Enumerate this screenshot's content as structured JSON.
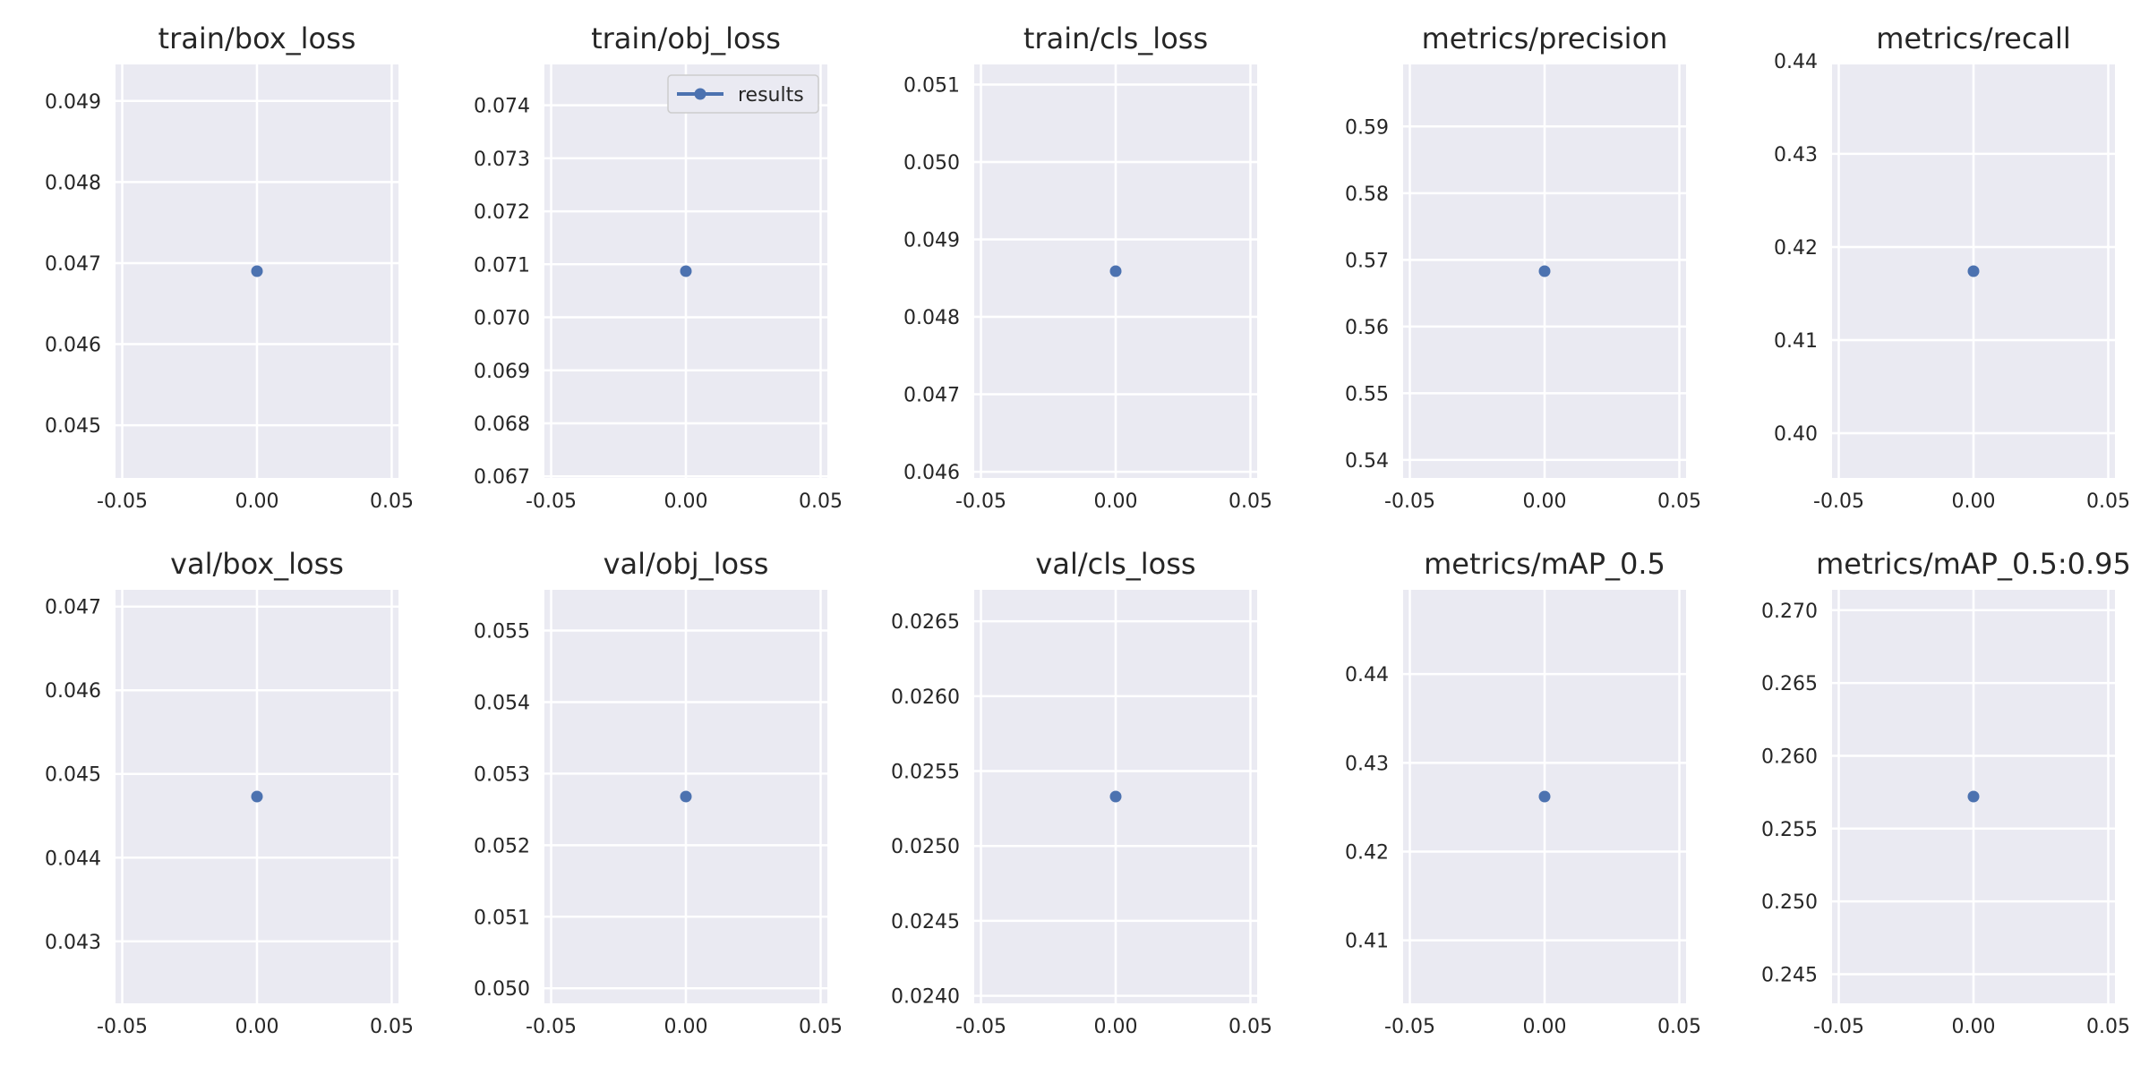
{
  "chart_data": {
    "type": "scatter",
    "legend": {
      "label": "results",
      "position": "upper-right",
      "panel": 1
    },
    "colors": {
      "point": "#4c72b0",
      "background": "#eaeaf2",
      "grid": "#ffffff",
      "text": "#262626"
    },
    "grid": true,
    "x_ticks": [
      "-0.05",
      "0.00",
      "0.05"
    ],
    "panels": [
      {
        "title": "train/box_loss",
        "x": 0.0,
        "y": 0.0469,
        "ylim": [
          0.04435,
          0.04945
        ],
        "yticks": [
          0.045,
          0.046,
          0.047,
          0.048,
          0.049
        ],
        "ytick_labels": [
          "0.045",
          "0.046",
          "0.047",
          "0.048",
          "0.049"
        ]
      },
      {
        "title": "train/obj_loss",
        "x": 0.0,
        "y": 0.07087,
        "ylim": [
          0.06697,
          0.07477
        ],
        "yticks": [
          0.067,
          0.068,
          0.069,
          0.07,
          0.071,
          0.072,
          0.073,
          0.074
        ],
        "ytick_labels": [
          "0.067",
          "0.068",
          "0.069",
          "0.070",
          "0.071",
          "0.072",
          "0.073",
          "0.074"
        ]
      },
      {
        "title": "train/cls_loss",
        "x": 0.0,
        "y": 0.04859,
        "ylim": [
          0.04592,
          0.05126
        ],
        "yticks": [
          0.046,
          0.047,
          0.048,
          0.049,
          0.05,
          0.051
        ],
        "ytick_labels": [
          "0.046",
          "0.047",
          "0.048",
          "0.049",
          "0.050",
          "0.051"
        ]
      },
      {
        "title": "metrics/precision",
        "x": 0.0,
        "y": 0.5683,
        "ylim": [
          0.5373,
          0.5993
        ],
        "yticks": [
          0.54,
          0.55,
          0.56,
          0.57,
          0.58,
          0.59
        ],
        "ytick_labels": [
          "0.54",
          "0.55",
          "0.56",
          "0.57",
          "0.58",
          "0.59"
        ]
      },
      {
        "title": "metrics/recall",
        "x": 0.0,
        "y": 0.4174,
        "ylim": [
          0.3952,
          0.4396
        ],
        "yticks": [
          0.4,
          0.41,
          0.42,
          0.43,
          0.44
        ],
        "ytick_labels": [
          "0.40",
          "0.41",
          "0.42",
          "0.43",
          "0.44"
        ]
      },
      {
        "title": "val/box_loss",
        "x": 0.0,
        "y": 0.04473,
        "ylim": [
          0.04226,
          0.0472
        ],
        "yticks": [
          0.043,
          0.044,
          0.045,
          0.046,
          0.047
        ],
        "ytick_labels": [
          "0.043",
          "0.044",
          "0.045",
          "0.046",
          "0.047"
        ]
      },
      {
        "title": "val/obj_loss",
        "x": 0.0,
        "y": 0.05268,
        "ylim": [
          0.04979,
          0.05557
        ],
        "yticks": [
          0.05,
          0.051,
          0.052,
          0.053,
          0.054,
          0.055
        ],
        "ytick_labels": [
          "0.050",
          "0.051",
          "0.052",
          "0.053",
          "0.054",
          "0.055"
        ]
      },
      {
        "title": "val/cls_loss",
        "x": 0.0,
        "y": 0.02533,
        "ylim": [
          0.02395,
          0.02671
        ],
        "yticks": [
          0.024,
          0.0245,
          0.025,
          0.0255,
          0.026,
          0.0265
        ],
        "ytick_labels": [
          "0.0240",
          "0.0245",
          "0.0250",
          "0.0255",
          "0.0260",
          "0.0265"
        ]
      },
      {
        "title": "metrics/mAP_0.5",
        "x": 0.0,
        "y": 0.4262,
        "ylim": [
          0.4029,
          0.4495
        ],
        "yticks": [
          0.41,
          0.42,
          0.43,
          0.44
        ],
        "ytick_labels": [
          "0.41",
          "0.42",
          "0.43",
          "0.44"
        ]
      },
      {
        "title": "metrics/mAP_0.5:0.95",
        "x": 0.0,
        "y": 0.2572,
        "ylim": [
          0.243,
          0.2714
        ],
        "yticks": [
          0.245,
          0.25,
          0.255,
          0.26,
          0.265,
          0.27
        ],
        "ytick_labels": [
          "0.245",
          "0.250",
          "0.255",
          "0.260",
          "0.265",
          "0.270"
        ]
      }
    ]
  }
}
